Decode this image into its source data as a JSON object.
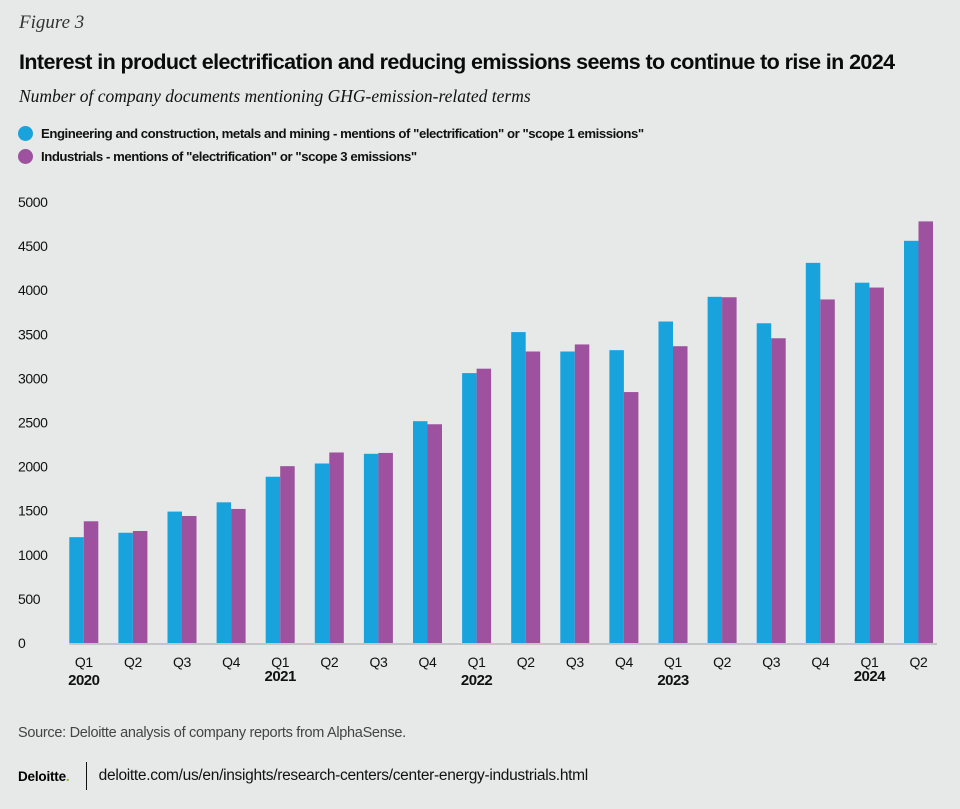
{
  "header": {
    "figure_label": "Figure 3",
    "title": "Interest in product electrification and reducing emissions seems to continue to rise in 2024",
    "subtitle": "Number of company documents mentioning GHG-emission-related terms"
  },
  "legend": [
    {
      "label": "Engineering and construction, metals and mining - mentions of \"electrification\" or \"scope 1 emissions\"",
      "color": "#19a3dc"
    },
    {
      "label": "Industrials - mentions of \"electrification\" or \"scope 3 emissions\"",
      "color": "#9d519e"
    }
  ],
  "footer": {
    "source": "Source: Deloitte analysis of company reports from AlphaSense.",
    "logo": "Deloitte",
    "logo_dot": ".",
    "url": "deloitte.com/us/en/insights/research-centers/center-energy-industrials.html"
  },
  "chart_data": {
    "type": "bar",
    "title": "Interest in product electrification and reducing emissions seems to continue to rise in 2024",
    "subtitle": "Number of company documents mentioning GHG-emission-related terms",
    "xlabel": "",
    "ylabel": "",
    "ylim": [
      0,
      5000
    ],
    "yticks": [
      0,
      500,
      1000,
      1500,
      2000,
      2500,
      3000,
      3500,
      4000,
      4500,
      5000
    ],
    "grid": false,
    "legend_position": "top-left",
    "categories": [
      "Q1",
      "Q2",
      "Q3",
      "Q4",
      "Q1",
      "Q2",
      "Q3",
      "Q4",
      "Q1",
      "Q2",
      "Q3",
      "Q4",
      "Q1",
      "Q2",
      "Q3",
      "Q4",
      "Q1",
      "Q2"
    ],
    "year_labels": [
      {
        "label": "2020",
        "index": 0
      },
      {
        "label": "2021",
        "index": 4
      },
      {
        "label": "2022",
        "index": 8
      },
      {
        "label": "2023",
        "index": 12
      },
      {
        "label": "2024",
        "index": 16
      }
    ],
    "series": [
      {
        "name": "Engineering and construction, metals and mining - mentions of \"electrification\" or \"scope 1 emissions\"",
        "color": "#19a3dc",
        "values": [
          1200,
          1250,
          1490,
          1595,
          1885,
          2035,
          2145,
          2515,
          3060,
          3525,
          3305,
          3320,
          3645,
          3925,
          3625,
          4310,
          4085,
          4560
        ]
      },
      {
        "name": "Industrials - mentions of \"electrification\" or \"scope 3 emissions\"",
        "color": "#9d519e",
        "values": [
          1380,
          1270,
          1440,
          1520,
          2005,
          2160,
          2155,
          2480,
          3110,
          3305,
          3385,
          2845,
          3365,
          3920,
          3455,
          3895,
          4030,
          4780
        ]
      }
    ]
  }
}
